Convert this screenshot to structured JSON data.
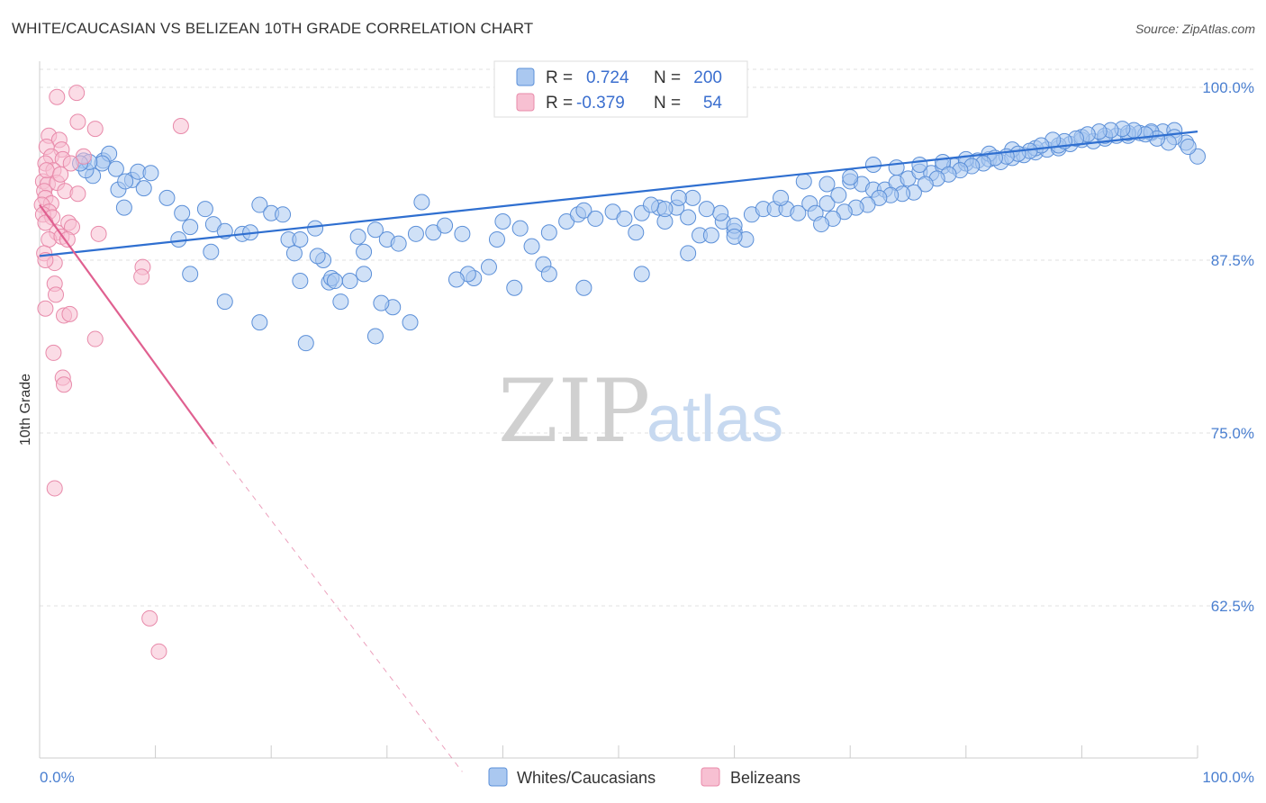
{
  "title": "WHITE/CAUCASIAN VS BELIZEAN 10TH GRADE CORRELATION CHART",
  "source": "Source: ZipAtlas.com",
  "watermark": {
    "zip": "ZIP",
    "atlas": "atlas"
  },
  "legend": {
    "rows": [
      {
        "r_label": "R =",
        "r_value": "0.724",
        "n_label": "N =",
        "n_value": "200"
      },
      {
        "r_label": "R =",
        "r_value": "-0.379",
        "n_label": "N =",
        "n_value": "54"
      }
    ]
  },
  "bottom_legend": [
    "Whites/Caucasians",
    "Belizeans"
  ],
  "colors": {
    "blue_fill": "#aac8f0",
    "blue_stroke": "#5b8fd8",
    "blue_line": "#2f6fd0",
    "pink_fill": "#f7c0d2",
    "pink_stroke": "#e88aaa",
    "pink_line": "#e06090",
    "grid": "#e0e0e0",
    "tick_label": "#4a7fd0"
  },
  "chart_data": {
    "type": "scatter",
    "title": "WHITE/CAUCASIAN VS BELIZEAN 10TH GRADE CORRELATION CHART",
    "xlabel": "",
    "ylabel": "10th Grade",
    "xlim": [
      0,
      100
    ],
    "ylim": [
      50.5,
      102
    ],
    "x_tick_labels": [
      {
        "value": 0,
        "label": "0.0%"
      },
      {
        "value": 100,
        "label": "100.0%"
      }
    ],
    "y_tick_labels": [
      {
        "value": 100,
        "label": "100.0%"
      },
      {
        "value": 87.5,
        "label": "87.5%"
      },
      {
        "value": 75,
        "label": "75.0%"
      },
      {
        "value": 62.5,
        "label": "62.5%"
      }
    ],
    "grid": true,
    "legend_position": "top-center",
    "series": [
      {
        "name": "Whites/Caucasians",
        "color": "#aac8f0",
        "trend": {
          "x": [
            0,
            100
          ],
          "y": [
            87.8,
            96.8
          ]
        },
        "points": [
          [
            3.8,
            94.7
          ],
          [
            4.6,
            93.6
          ],
          [
            4.0,
            94.0
          ],
          [
            5.5,
            94.7
          ],
          [
            6.0,
            95.2
          ],
          [
            6.8,
            92.6
          ],
          [
            7.3,
            91.3
          ],
          [
            5.4,
            94.5
          ],
          [
            4.3,
            94.6
          ],
          [
            3.5,
            94.5
          ],
          [
            6.6,
            94.1
          ],
          [
            8.0,
            93.3
          ],
          [
            9.0,
            92.7
          ],
          [
            7.4,
            93.2
          ],
          [
            8.5,
            93.9
          ],
          [
            9.6,
            93.8
          ],
          [
            11.0,
            92.0
          ],
          [
            12.3,
            90.9
          ],
          [
            14.3,
            91.2
          ],
          [
            15.0,
            90.1
          ],
          [
            12.0,
            89.0
          ],
          [
            13.0,
            89.9
          ],
          [
            14.8,
            88.1
          ],
          [
            16.0,
            89.6
          ],
          [
            17.5,
            89.4
          ],
          [
            18.2,
            89.5
          ],
          [
            19.0,
            91.5
          ],
          [
            20.0,
            90.9
          ],
          [
            21.0,
            90.8
          ],
          [
            21.5,
            89.0
          ],
          [
            22.0,
            88.0
          ],
          [
            22.5,
            89.0
          ],
          [
            23.8,
            89.8
          ],
          [
            24.5,
            87.5
          ],
          [
            25.0,
            85.9
          ],
          [
            26.0,
            84.5
          ],
          [
            25.2,
            86.2
          ],
          [
            26.8,
            86.0
          ],
          [
            27.5,
            89.2
          ],
          [
            28.0,
            88.1
          ],
          [
            29.0,
            89.7
          ],
          [
            30.0,
            89.0
          ],
          [
            31.0,
            88.7
          ],
          [
            32.5,
            89.4
          ],
          [
            33.0,
            91.7
          ],
          [
            34.0,
            89.5
          ],
          [
            35.0,
            90.0
          ],
          [
            36.5,
            89.4
          ],
          [
            37.5,
            86.2
          ],
          [
            38.8,
            87.0
          ],
          [
            39.5,
            89.0
          ],
          [
            40.0,
            90.3
          ],
          [
            41.5,
            89.8
          ],
          [
            42.5,
            88.5
          ],
          [
            43.5,
            87.2
          ],
          [
            44.0,
            89.5
          ],
          [
            45.5,
            90.3
          ],
          [
            46.5,
            90.8
          ],
          [
            47.0,
            91.1
          ],
          [
            48.0,
            90.5
          ],
          [
            49.5,
            91.0
          ],
          [
            50.5,
            90.5
          ],
          [
            51.5,
            89.5
          ],
          [
            52.0,
            90.9
          ],
          [
            53.5,
            91.3
          ],
          [
            54.0,
            90.3
          ],
          [
            55.0,
            91.3
          ],
          [
            56.0,
            90.6
          ],
          [
            57.0,
            89.3
          ],
          [
            58.0,
            89.3
          ],
          [
            59.0,
            90.3
          ],
          [
            60.0,
            89.6
          ],
          [
            61.5,
            90.8
          ],
          [
            62.5,
            91.2
          ],
          [
            63.5,
            91.2
          ],
          [
            64.5,
            91.2
          ],
          [
            65.5,
            90.9
          ],
          [
            66.5,
            91.6
          ],
          [
            67.0,
            90.9
          ],
          [
            68.0,
            91.6
          ],
          [
            69.0,
            92.2
          ],
          [
            70.0,
            93.2
          ],
          [
            71.0,
            93.0
          ],
          [
            72.0,
            92.6
          ],
          [
            73.0,
            92.6
          ],
          [
            74.0,
            93.1
          ],
          [
            75.0,
            93.4
          ],
          [
            76.0,
            93.9
          ],
          [
            77.0,
            93.8
          ],
          [
            78.0,
            94.3
          ],
          [
            79.0,
            94.3
          ],
          [
            80.0,
            94.5
          ],
          [
            81.0,
            94.7
          ],
          [
            82.0,
            94.8
          ],
          [
            83.0,
            94.6
          ],
          [
            84.0,
            94.9
          ],
          [
            85.0,
            95.1
          ],
          [
            86.0,
            95.3
          ],
          [
            87.0,
            95.5
          ],
          [
            88.0,
            95.6
          ],
          [
            89.0,
            95.9
          ],
          [
            90.0,
            96.2
          ],
          [
            91.0,
            96.1
          ],
          [
            92.0,
            96.3
          ],
          [
            93.0,
            96.5
          ],
          [
            94.0,
            96.5
          ],
          [
            95.0,
            96.7
          ],
          [
            96.0,
            96.7
          ],
          [
            97.0,
            96.8
          ],
          [
            98.0,
            96.9
          ],
          [
            99.0,
            96.0
          ],
          [
            100.0,
            95.0
          ],
          [
            61.0,
            89.0
          ],
          [
            60.0,
            90.0
          ],
          [
            58.8,
            90.9
          ],
          [
            57.6,
            91.2
          ],
          [
            56.4,
            92.0
          ],
          [
            55.2,
            92.0
          ],
          [
            54.0,
            91.2
          ],
          [
            52.8,
            91.5
          ],
          [
            64.0,
            92.0
          ],
          [
            66.0,
            93.2
          ],
          [
            68.0,
            93.0
          ],
          [
            70.0,
            93.5
          ],
          [
            72.0,
            94.4
          ],
          [
            74.0,
            94.2
          ],
          [
            76.0,
            94.4
          ],
          [
            78.0,
            94.6
          ],
          [
            80.0,
            94.8
          ],
          [
            82.0,
            95.2
          ],
          [
            84.0,
            95.5
          ],
          [
            86.0,
            95.6
          ],
          [
            88.0,
            95.8
          ],
          [
            90.0,
            96.4
          ],
          [
            92.0,
            96.5
          ],
          [
            94.0,
            96.7
          ],
          [
            96.0,
            96.8
          ],
          [
            98.0,
            96.4
          ],
          [
            99.2,
            95.7
          ],
          [
            97.5,
            96.0
          ],
          [
            96.5,
            96.3
          ],
          [
            95.5,
            96.6
          ],
          [
            94.5,
            96.9
          ],
          [
            93.5,
            97.0
          ],
          [
            92.5,
            96.9
          ],
          [
            91.5,
            96.8
          ],
          [
            90.5,
            96.6
          ],
          [
            89.5,
            96.3
          ],
          [
            88.5,
            96.1
          ],
          [
            87.5,
            96.2
          ],
          [
            86.5,
            95.8
          ],
          [
            85.5,
            95.4
          ],
          [
            84.5,
            95.2
          ],
          [
            83.5,
            95.0
          ],
          [
            82.5,
            94.9
          ],
          [
            81.5,
            94.5
          ],
          [
            80.5,
            94.3
          ],
          [
            79.5,
            94.0
          ],
          [
            78.5,
            93.7
          ],
          [
            77.5,
            93.4
          ],
          [
            76.5,
            93.0
          ],
          [
            75.5,
            92.4
          ],
          [
            74.5,
            92.3
          ],
          [
            73.5,
            92.2
          ],
          [
            72.5,
            92.0
          ],
          [
            71.5,
            91.5
          ],
          [
            70.5,
            91.3
          ],
          [
            69.5,
            91.0
          ],
          [
            68.5,
            90.5
          ],
          [
            67.5,
            90.1
          ],
          [
            37.0,
            86.5
          ],
          [
            36.0,
            86.1
          ],
          [
            30.5,
            84.1
          ],
          [
            29.5,
            84.4
          ],
          [
            28.0,
            86.5
          ],
          [
            25.5,
            86.0
          ],
          [
            24.0,
            87.8
          ],
          [
            22.5,
            86.0
          ],
          [
            13.0,
            86.5
          ],
          [
            16.0,
            84.5
          ],
          [
            19.0,
            83.0
          ],
          [
            23.0,
            81.5
          ],
          [
            29.0,
            82.0
          ],
          [
            32.0,
            83.0
          ],
          [
            41.0,
            85.5
          ],
          [
            44.0,
            86.5
          ],
          [
            47.0,
            85.5
          ],
          [
            52.0,
            86.5
          ],
          [
            56.0,
            88.0
          ],
          [
            60.0,
            89.2
          ]
        ]
      },
      {
        "name": "Belizeans",
        "color": "#f7c0d2",
        "trend": {
          "x": [
            0,
            15
          ],
          "y": [
            91.5,
            74.2
          ]
        },
        "trend_dashed": {
          "x": [
            15,
            36.5
          ],
          "y": [
            74.2,
            50.5
          ]
        },
        "points": [
          [
            1.5,
            99.3
          ],
          [
            3.2,
            99.6
          ],
          [
            3.3,
            97.5
          ],
          [
            4.8,
            97.0
          ],
          [
            12.2,
            97.2
          ],
          [
            0.8,
            96.5
          ],
          [
            1.7,
            96.2
          ],
          [
            0.6,
            95.7
          ],
          [
            1.9,
            95.5
          ],
          [
            1.0,
            95.0
          ],
          [
            3.8,
            95.0
          ],
          [
            0.5,
            94.5
          ],
          [
            2.0,
            94.8
          ],
          [
            1.2,
            94.0
          ],
          [
            0.3,
            93.2
          ],
          [
            0.7,
            93.0
          ],
          [
            1.5,
            93.1
          ],
          [
            0.4,
            92.5
          ],
          [
            2.2,
            92.5
          ],
          [
            3.3,
            92.3
          ],
          [
            0.5,
            92.0
          ],
          [
            1.0,
            91.6
          ],
          [
            0.2,
            91.5
          ],
          [
            0.8,
            91.0
          ],
          [
            0.3,
            90.8
          ],
          [
            1.1,
            90.6
          ],
          [
            0.5,
            90.2
          ],
          [
            2.5,
            90.2
          ],
          [
            2.8,
            89.9
          ],
          [
            1.5,
            89.5
          ],
          [
            5.1,
            89.4
          ],
          [
            0.8,
            89.0
          ],
          [
            1.9,
            89.2
          ],
          [
            2.4,
            89.0
          ],
          [
            0.4,
            88.0
          ],
          [
            1.3,
            87.3
          ],
          [
            0.5,
            87.5
          ],
          [
            8.9,
            87.0
          ],
          [
            8.8,
            86.3
          ],
          [
            1.3,
            85.8
          ],
          [
            1.4,
            85.0
          ],
          [
            0.5,
            84.0
          ],
          [
            2.1,
            83.5
          ],
          [
            2.6,
            83.6
          ],
          [
            4.8,
            81.8
          ],
          [
            1.2,
            80.8
          ],
          [
            2.0,
            79.0
          ],
          [
            2.1,
            78.5
          ],
          [
            1.3,
            71.0
          ],
          [
            9.5,
            61.6
          ],
          [
            10.3,
            59.2
          ],
          [
            0.6,
            94.0
          ],
          [
            2.7,
            94.5
          ],
          [
            1.8,
            93.7
          ]
        ]
      }
    ]
  }
}
